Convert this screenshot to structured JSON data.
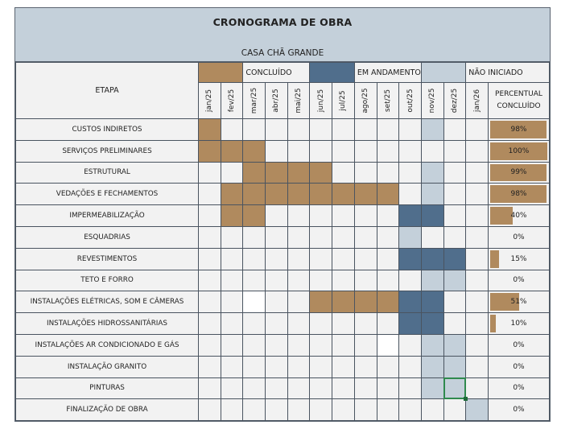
{
  "header": {
    "title": "CRONOGRAMA DE OBRA",
    "subtitle": "CASA CHÃ GRANDE"
  },
  "legend": {
    "concluido": {
      "label": "CONCLUÍDO",
      "color": "#b08a5e"
    },
    "andamento": {
      "label": "EM ANDAMENTO",
      "color": "#506e8c"
    },
    "nao_iniciado": {
      "label": "NÃO INICIADO",
      "color": "#c4d0da"
    }
  },
  "columns": {
    "etapa": "ETAPA",
    "months": [
      "jan/25",
      "fev/25",
      "mar/25",
      "abr/25",
      "mai/25",
      "jun/25",
      "jul/25",
      "ago/25",
      "set/25",
      "out/25",
      "nov/25",
      "dez/25",
      "jan/26"
    ],
    "percent_line1": "PERCENTUAL",
    "percent_line2": "CONCLUÍDO"
  },
  "rows": [
    {
      "stage": "CUSTOS INDIRETOS",
      "percent": "98%",
      "pct_value": 98,
      "cells": [
        "c",
        "",
        "",
        "",
        "",
        "",
        "",
        "",
        "",
        "",
        "n",
        "",
        ""
      ]
    },
    {
      "stage": "SERVIÇOS PRELIMINARES",
      "percent": "100%",
      "pct_value": 100,
      "cells": [
        "c",
        "c",
        "c",
        "",
        "",
        "",
        "",
        "",
        "",
        "",
        "",
        "",
        ""
      ]
    },
    {
      "stage": "ESTRUTURAL",
      "percent": "99%",
      "pct_value": 99,
      "cells": [
        "",
        "",
        "c",
        "c",
        "c",
        "c",
        "",
        "",
        "",
        "",
        "n",
        "",
        ""
      ]
    },
    {
      "stage": "VEDAÇÕES E FECHAMENTOS",
      "percent": "98%",
      "pct_value": 98,
      "cells": [
        "",
        "c",
        "c",
        "c",
        "c",
        "c",
        "c",
        "c",
        "c",
        "",
        "n",
        "",
        ""
      ]
    },
    {
      "stage": "IMPERMEABILIZAÇÃO",
      "percent": "40%",
      "pct_value": 40,
      "cells": [
        "",
        "c",
        "c",
        "",
        "",
        "",
        "",
        "",
        "",
        "a",
        "a",
        "",
        ""
      ]
    },
    {
      "stage": "ESQUADRIAS",
      "percent": "0%",
      "pct_value": 0,
      "cells": [
        "",
        "",
        "",
        "",
        "",
        "",
        "",
        "",
        "",
        "n",
        "",
        "",
        ""
      ]
    },
    {
      "stage": "REVESTIMENTOS",
      "percent": "15%",
      "pct_value": 15,
      "cells": [
        "",
        "",
        "",
        "",
        "",
        "",
        "",
        "",
        "",
        "a",
        "a",
        "a",
        ""
      ]
    },
    {
      "stage": "TETO E FORRO",
      "percent": "0%",
      "pct_value": 0,
      "cells": [
        "",
        "",
        "",
        "",
        "",
        "",
        "",
        "",
        "",
        "",
        "n",
        "n",
        ""
      ]
    },
    {
      "stage": "INSTALAÇÕES ELÉTRICAS, SOM E CÂMERAS",
      "percent": "51%",
      "pct_value": 51,
      "cells": [
        "",
        "",
        "w",
        "",
        "",
        "c",
        "c",
        "c",
        "c",
        "a",
        "a",
        "",
        ""
      ]
    },
    {
      "stage": "INSTALAÇÕES HIDROSSANITÁRIAS",
      "percent": "10%",
      "pct_value": 10,
      "cells": [
        "",
        "",
        "",
        "",
        "",
        "",
        "",
        "",
        "",
        "a",
        "a",
        "",
        ""
      ]
    },
    {
      "stage": "INSTALAÇÕES AR CONDICIONADO E GÁS",
      "percent": "0%",
      "pct_value": 0,
      "cells": [
        "",
        "",
        "",
        "",
        "",
        "",
        "",
        "",
        "w",
        "",
        "n",
        "n",
        ""
      ]
    },
    {
      "stage": "INSTALAÇÃO GRANITO",
      "percent": "0%",
      "pct_value": 0,
      "cells": [
        "",
        "",
        "",
        "",
        "",
        "",
        "",
        "",
        "",
        "",
        "n",
        "n",
        ""
      ]
    },
    {
      "stage": "PINTURAS",
      "percent": "0%",
      "pct_value": 0,
      "cells": [
        "",
        "",
        "",
        "",
        "",
        "",
        "",
        "",
        "",
        "",
        "n",
        "n sel",
        ""
      ]
    },
    {
      "stage": "FINALIZAÇÃO DE OBRA",
      "percent": "0%",
      "pct_value": 0,
      "cells": [
        "",
        "",
        "",
        "",
        "",
        "",
        "",
        "",
        "",
        "",
        "",
        "",
        "n"
      ]
    }
  ]
}
